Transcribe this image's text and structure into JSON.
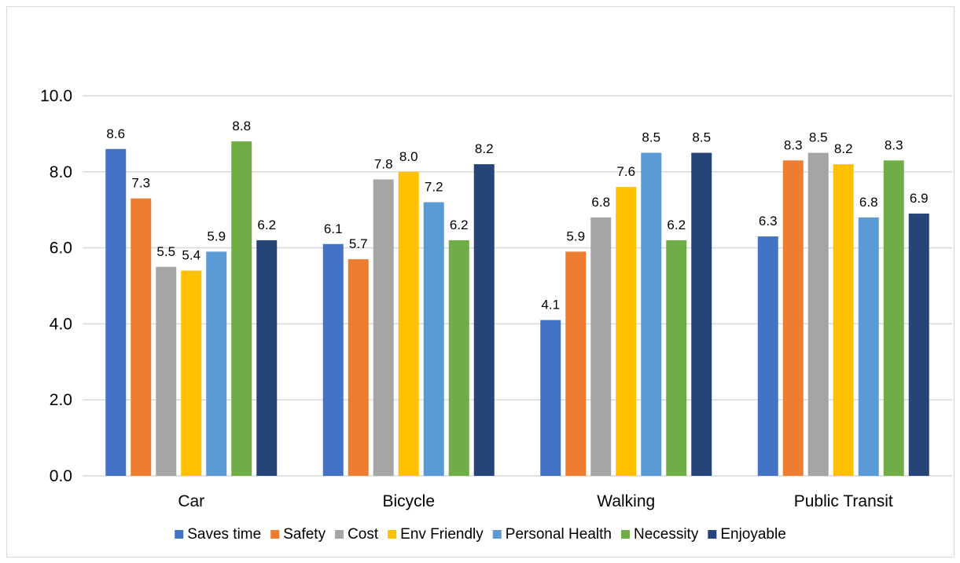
{
  "chart_data": {
    "type": "bar",
    "categories": [
      "Car",
      "Bicycle",
      "Walking",
      "Public Transit"
    ],
    "series": [
      {
        "name": "Saves time",
        "values": [
          8.6,
          6.1,
          4.1,
          6.3
        ],
        "color": "#4472C4"
      },
      {
        "name": "Safety",
        "values": [
          7.3,
          5.7,
          5.9,
          8.3
        ],
        "color": "#ED7D31"
      },
      {
        "name": "Cost",
        "values": [
          5.5,
          7.8,
          6.8,
          8.5
        ],
        "color": "#A5A5A5"
      },
      {
        "name": "Env Friendly",
        "values": [
          5.4,
          8.0,
          7.6,
          8.2
        ],
        "color": "#FFC000"
      },
      {
        "name": "Personal Health",
        "values": [
          5.9,
          7.2,
          8.5,
          6.8
        ],
        "color": "#5B9BD5"
      },
      {
        "name": "Necessity",
        "values": [
          8.8,
          6.2,
          6.2,
          8.3
        ],
        "color": "#70AD47"
      },
      {
        "name": "Enjoyable",
        "values": [
          6.2,
          8.2,
          8.5,
          6.9
        ],
        "color": "#264478"
      }
    ],
    "yticks": [
      "0.0",
      "2.0",
      "4.0",
      "6.0",
      "8.0",
      "10.0"
    ],
    "ylim": [
      0,
      10
    ],
    "title": "",
    "xlabel": "",
    "ylabel": "",
    "grid": true,
    "legend_position": "bottom",
    "data_label_decimals": 1
  }
}
